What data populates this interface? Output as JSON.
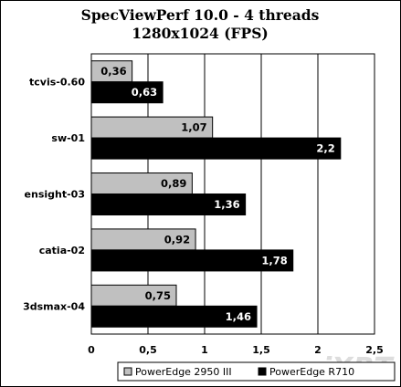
{
  "chart_data": {
    "type": "bar",
    "orientation": "horizontal",
    "title": "SpecViewPerf 10.0 - 4 threads",
    "subtitle": "1280x1024 (FPS)",
    "categories": [
      "tcvis-0.60",
      "sw-01",
      "ensight-03",
      "catia-02",
      "3dsmax-04"
    ],
    "series": [
      {
        "name": "PowerEdge 2950 III",
        "color": "#c0c0c0",
        "values": [
          0.36,
          1.07,
          0.89,
          0.92,
          0.75
        ],
        "labels": [
          "0,36",
          "1,07",
          "0,89",
          "0,92",
          "0,75"
        ]
      },
      {
        "name": "PowerEdge R710",
        "color": "#000000",
        "values": [
          0.63,
          2.2,
          1.36,
          1.78,
          1.46
        ],
        "labels": [
          "0,63",
          "2,2",
          "1,36",
          "1,78",
          "1,46"
        ]
      }
    ],
    "xlim": [
      0,
      2.5
    ],
    "xticks": [
      0,
      0.5,
      1,
      1.5,
      2,
      2.5
    ],
    "xtick_labels": [
      "0",
      "0,5",
      "1",
      "1,5",
      "2",
      "2,5"
    ],
    "grid": true,
    "legend_position": "bottom-right"
  },
  "watermark": "iXBT"
}
